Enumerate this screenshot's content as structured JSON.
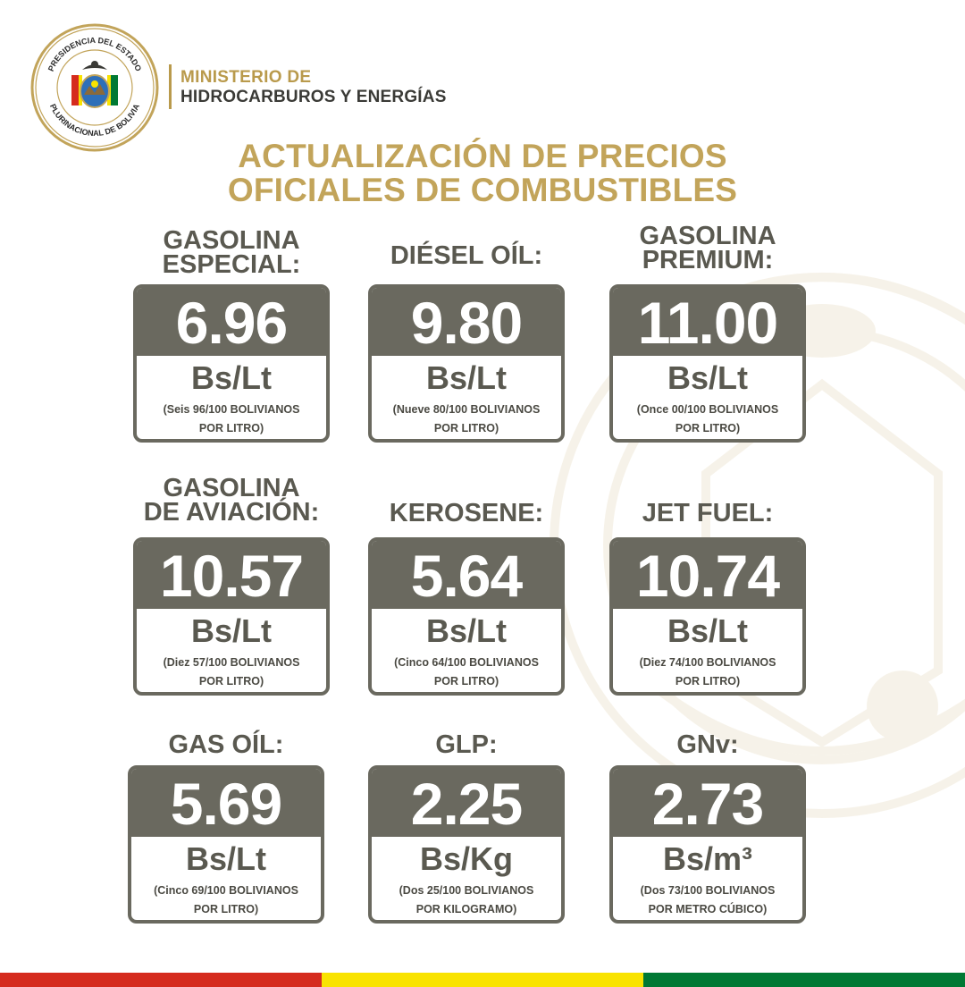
{
  "colors": {
    "gold": "#c2a45a",
    "dark_gray": "#6a695f",
    "text_gray": "#5a5950",
    "flag_red": "#d52b1e",
    "flag_yellow": "#f9e300",
    "flag_green": "#007934"
  },
  "seal": {
    "top_text": "PRESIDENCIA DEL ESTADO",
    "bottom_text": "PLURINACIONAL DE BOLIVIA",
    "icon": "bolivia-coat-of-arms"
  },
  "ministry": {
    "line1": "MINISTERIO DE",
    "line2": "HIDROCARBUROS Y ENERGÍAS"
  },
  "headline": {
    "line1": "ACTUALIZACIÓN DE PRECIOS",
    "line2": "OFICIALES DE COMBUSTIBLES"
  },
  "fuels": [
    {
      "name1": "GASOLINA",
      "name2": "ESPECIAL:",
      "price": "6.96",
      "unit": "Bs/Lt",
      "words1": "(Seis 96/100 BOLIVIANOS",
      "words2": "POR LITRO)"
    },
    {
      "name1": "",
      "name2": "DIÉSEL OÍL:",
      "price": "9.80",
      "unit": "Bs/Lt",
      "words1": "(Nueve 80/100 BOLIVIANOS",
      "words2": "POR LITRO)"
    },
    {
      "name1": "GASOLINA",
      "name2": "PREMIUM:",
      "price": "11.00",
      "unit": "Bs/Lt",
      "words1": "(Once 00/100 BOLIVIANOS",
      "words2": "POR LITRO)"
    },
    {
      "name1": "GASOLINA",
      "name2": "DE AVIACIÓN:",
      "price": "10.57",
      "unit": "Bs/Lt",
      "words1": "(Diez 57/100 BOLIVIANOS",
      "words2": "POR LITRO)"
    },
    {
      "name1": "",
      "name2": "KEROSENE:",
      "price": "5.64",
      "unit": "Bs/Lt",
      "words1": "(Cinco 64/100 BOLIVIANOS",
      "words2": "POR LITRO)"
    },
    {
      "name1": "",
      "name2": "JET FUEL:",
      "price": "10.74",
      "unit": "Bs/Lt",
      "words1": "(Diez 74/100 BOLIVIANOS",
      "words2": "POR LITRO)"
    },
    {
      "name1": "",
      "name2": "GAS OÍL:",
      "price": "5.69",
      "unit": "Bs/Lt",
      "words1": "(Cinco 69/100 BOLIVIANOS",
      "words2": "POR LITRO)"
    },
    {
      "name1": "",
      "name2": "GLP:",
      "price": "2.25",
      "unit": "Bs/Kg",
      "words1": "(Dos 25/100 BOLIVIANOS",
      "words2": "POR KILOGRAMO)"
    },
    {
      "name1": "",
      "name2": "GNv:",
      "price": "2.73",
      "unit": "Bs/m³",
      "words1": "(Dos 73/100 BOLIVIANOS",
      "words2": "POR METRO CÚBICO)"
    }
  ]
}
